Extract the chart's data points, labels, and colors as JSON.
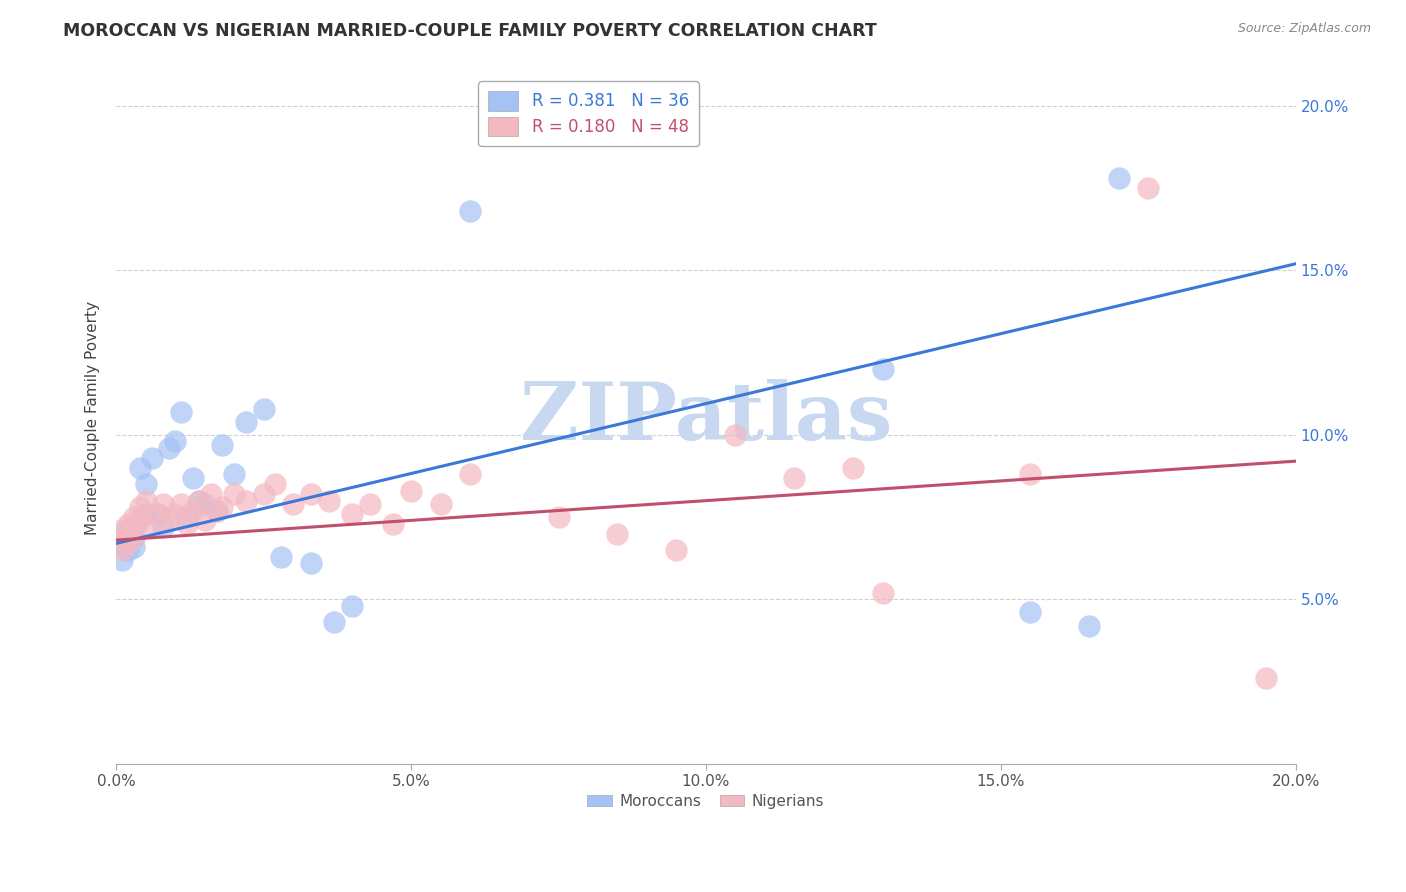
{
  "title": "MOROCCAN VS NIGERIAN MARRIED-COUPLE FAMILY POVERTY CORRELATION CHART",
  "source": "Source: ZipAtlas.com",
  "ylabel": "Married-Couple Family Poverty",
  "xmin": 0.0,
  "xmax": 0.2,
  "ymin": 0.0,
  "ymax": 0.21,
  "ytick_vals": [
    0.05,
    0.1,
    0.15,
    0.2
  ],
  "xtick_vals": [
    0.0,
    0.05,
    0.1,
    0.15,
    0.2
  ],
  "moroccan_R": 0.381,
  "moroccan_N": 36,
  "nigerian_R": 0.18,
  "nigerian_N": 48,
  "moroccan_color": "#a4c2f4",
  "nigerian_color": "#f4b8c1",
  "moroccan_line_color": "#3c78d8",
  "nigerian_line_color": "#c2506c",
  "watermark_text": "ZIPatlas",
  "watermark_color": "#c8d8f0",
  "moroccan_line_x0": 0.0,
  "moroccan_line_y0": 0.067,
  "moroccan_line_x1": 0.2,
  "moroccan_line_y1": 0.152,
  "nigerian_line_x0": 0.0,
  "nigerian_line_y0": 0.068,
  "nigerian_line_x1": 0.2,
  "nigerian_line_y1": 0.092,
  "moroccan_x": [
    0.001,
    0.001,
    0.001,
    0.002,
    0.002,
    0.002,
    0.003,
    0.003,
    0.003,
    0.004,
    0.005,
    0.005,
    0.006,
    0.007,
    0.008,
    0.009,
    0.01,
    0.011,
    0.012,
    0.013,
    0.014,
    0.015,
    0.017,
    0.018,
    0.02,
    0.022,
    0.025,
    0.028,
    0.033,
    0.037,
    0.04,
    0.06,
    0.13,
    0.155,
    0.165,
    0.17
  ],
  "moroccan_y": [
    0.07,
    0.067,
    0.062,
    0.071,
    0.068,
    0.065,
    0.072,
    0.069,
    0.066,
    0.09,
    0.085,
    0.076,
    0.093,
    0.076,
    0.072,
    0.096,
    0.098,
    0.107,
    0.075,
    0.087,
    0.08,
    0.079,
    0.077,
    0.097,
    0.088,
    0.104,
    0.108,
    0.063,
    0.061,
    0.043,
    0.048,
    0.168,
    0.12,
    0.046,
    0.042,
    0.178
  ],
  "nigerian_x": [
    0.001,
    0.001,
    0.001,
    0.002,
    0.002,
    0.002,
    0.003,
    0.003,
    0.003,
    0.004,
    0.004,
    0.005,
    0.006,
    0.007,
    0.008,
    0.009,
    0.01,
    0.011,
    0.012,
    0.013,
    0.014,
    0.015,
    0.016,
    0.017,
    0.018,
    0.02,
    0.022,
    0.025,
    0.027,
    0.03,
    0.033,
    0.036,
    0.04,
    0.043,
    0.047,
    0.05,
    0.055,
    0.06,
    0.075,
    0.085,
    0.095,
    0.105,
    0.115,
    0.125,
    0.13,
    0.155,
    0.175,
    0.195
  ],
  "nigerian_y": [
    0.071,
    0.068,
    0.065,
    0.073,
    0.07,
    0.067,
    0.075,
    0.072,
    0.069,
    0.078,
    0.074,
    0.08,
    0.072,
    0.076,
    0.079,
    0.074,
    0.076,
    0.079,
    0.073,
    0.077,
    0.08,
    0.074,
    0.082,
    0.077,
    0.078,
    0.082,
    0.08,
    0.082,
    0.085,
    0.079,
    0.082,
    0.08,
    0.076,
    0.079,
    0.073,
    0.083,
    0.079,
    0.088,
    0.075,
    0.07,
    0.065,
    0.1,
    0.087,
    0.09,
    0.052,
    0.088,
    0.175,
    0.026
  ]
}
